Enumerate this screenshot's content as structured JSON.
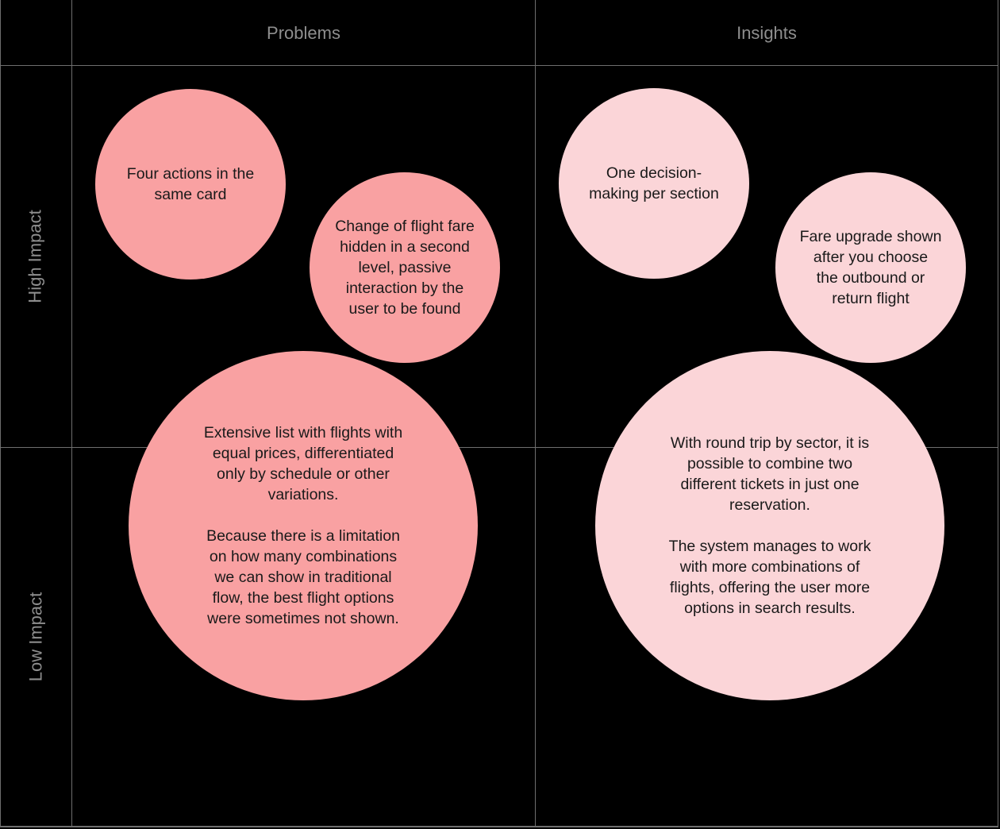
{
  "columns": [
    {
      "label": "Problems"
    },
    {
      "label": "Insights"
    }
  ],
  "rows": [
    {
      "label": "High Impact"
    },
    {
      "label": "Low Impact"
    }
  ],
  "bubbles": [
    {
      "id": "four-actions-same-card",
      "column": "Problems",
      "text": "Four actions in the\nsame card"
    },
    {
      "id": "flight-fare-hidden",
      "column": "Problems",
      "text": "Change of flight fare\nhidden in a second\nlevel, passive\ninteraction by the\nuser to be found"
    },
    {
      "id": "extensive-list-equal-prices",
      "column": "Problems",
      "text": "Extensive list with flights with\nequal prices, differentiated\nonly by schedule or other\nvariations.\n\nBecause there is a limitation\non how many combinations\nwe can show in traditional\nflow, the best flight options\nwere sometimes not shown."
    },
    {
      "id": "one-decision-per-section",
      "column": "Insights",
      "text": "One decision-\nmaking per section"
    },
    {
      "id": "fare-upgrade-after-choice",
      "column": "Insights",
      "text": "Fare upgrade shown\nafter you choose\nthe outbound or\nreturn flight"
    },
    {
      "id": "round-trip-by-sector",
      "column": "Insights",
      "text": "With round trip by sector, it is\npossible to combine two\ndifferent tickets in just one\nreservation.\n\nThe system manages to work\nwith more combinations of\nflights, offering the user more\noptions in search results."
    }
  ],
  "colors": {
    "background": "#000000",
    "grid_line": "#6E6E6E",
    "header_text": "#8E8E8E",
    "bubble_text": "#1A1A1A",
    "problem_bubble": "#F9A1A2",
    "insight_bubble": "#FBD5D8"
  }
}
